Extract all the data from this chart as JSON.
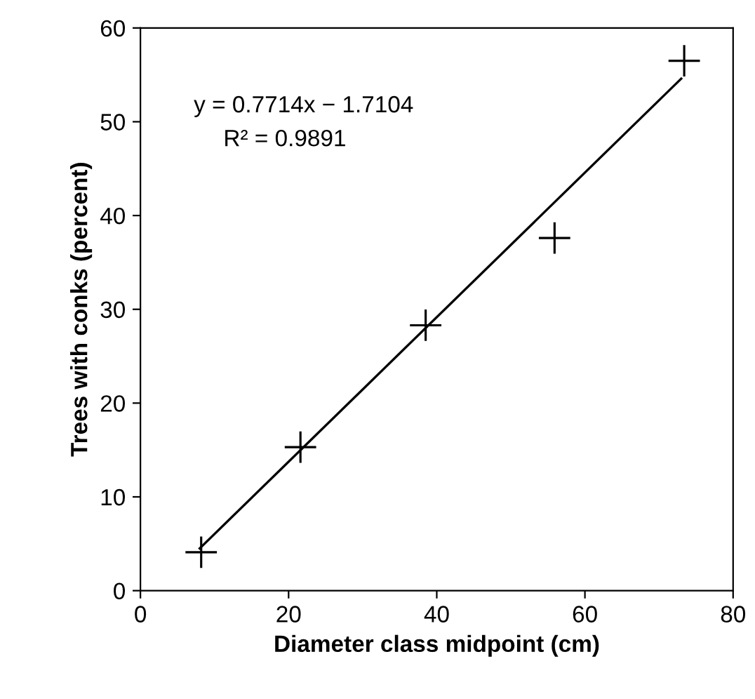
{
  "chart_data": {
    "type": "scatter",
    "xlabel": "Diameter class midpoint (cm)",
    "ylabel": "Trees with conks (percent)",
    "xlim": [
      0,
      80
    ],
    "xticks": [
      0,
      20,
      40,
      60,
      80
    ],
    "ylim": [
      0,
      60
    ],
    "yticks": [
      0,
      10,
      20,
      30,
      40,
      50,
      60
    ],
    "grid": false,
    "legend": false,
    "series": [
      {
        "color": "#000000",
        "marker": "cross",
        "x": [
          8.2,
          21.6,
          38.5,
          55.9,
          73.4
        ],
        "values": [
          4.1,
          15.3,
          28.3,
          37.6,
          56.5
        ]
      },
      {
        "type": "line",
        "color": "#000000",
        "marker": "none",
        "line_style": "solid",
        "x": [
          8,
          73
        ],
        "values": [
          4.5,
          54.6
        ]
      }
    ],
    "annotations": [
      "y = 0.7714x − 1.7104",
      "R² = 0.9891"
    ]
  }
}
